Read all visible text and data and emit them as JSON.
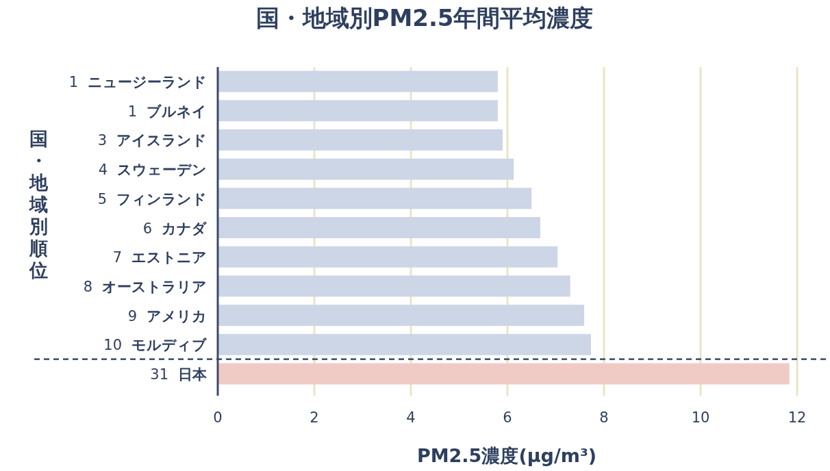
{
  "chart_data": {
    "type": "bar",
    "orientation": "horizontal",
    "title": "国・地域別PM2.5年間平均濃度",
    "xlabel": "PM2.5濃度(μg/m³)",
    "ylabel": "国・地域別順位",
    "categories": [
      "1 ニュージーランド",
      "1 ブルネイ",
      "3 アイスランド",
      "4 スウェーデン",
      "5 フィンランド",
      "6 カナダ",
      "7 エストニア",
      "8 オーストラリア",
      "9 アメリカ",
      "10 モルディブ",
      "31 日本"
    ],
    "values": [
      5.8,
      5.8,
      5.9,
      6.13,
      6.5,
      6.68,
      7.04,
      7.3,
      7.59,
      7.73,
      11.84
    ],
    "colors": [
      "#cdd6e6",
      "#cdd6e6",
      "#cdd6e6",
      "#cdd6e6",
      "#cdd6e6",
      "#cdd6e6",
      "#cdd6e6",
      "#cdd6e6",
      "#cdd6e6",
      "#cdd6e6",
      "#f0cbc6"
    ],
    "xlim": [
      0,
      12
    ],
    "xticks": [
      0,
      2,
      4,
      6,
      8,
      10,
      12
    ],
    "grid": "x"
  }
}
